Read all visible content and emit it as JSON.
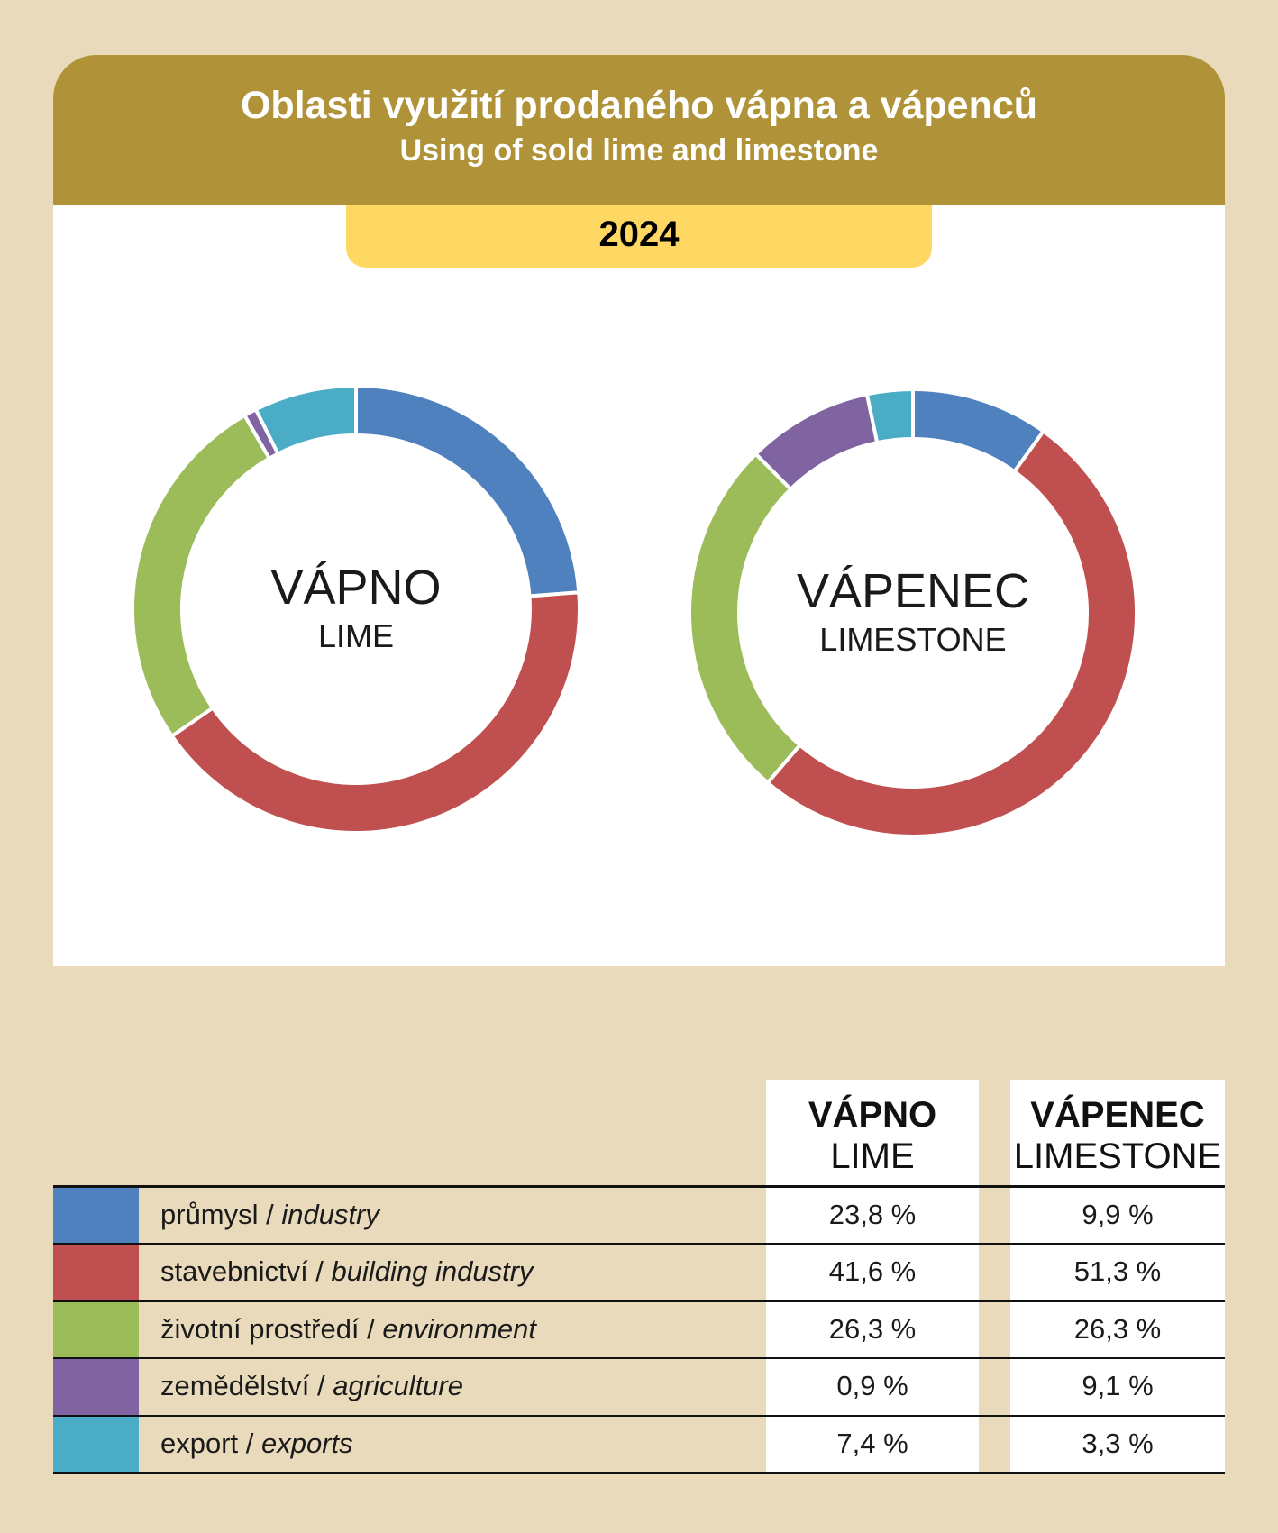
{
  "header": {
    "title": "Oblasti využití prodaného vápna a vápenců",
    "subtitle": "Using of sold lime and limestone",
    "year": "2024"
  },
  "colors": {
    "industry": "#5081bf",
    "building": "#c0504f",
    "environment": "#9bbc59",
    "agriculture": "#8064a2",
    "exports": "#4bacc6"
  },
  "chart_data": [
    {
      "type": "pie",
      "variant": "donut",
      "center_label": "VÁPNO",
      "center_sublabel": "LIME",
      "categories": [
        "průmysl / industry",
        "stavebnictví / building industry",
        "životní prostředí / environment",
        "zemědělství / agriculture",
        "export / exports"
      ],
      "values": [
        23.8,
        41.6,
        26.3,
        0.9,
        7.4
      ]
    },
    {
      "type": "pie",
      "variant": "donut",
      "center_label": "VÁPENEC",
      "center_sublabel": "LIMESTONE",
      "categories": [
        "průmysl / industry",
        "stavebnictví / building industry",
        "životní prostředí / environment",
        "zemědělství / agriculture",
        "export / exports"
      ],
      "values": [
        9.9,
        51.3,
        26.3,
        9.1,
        3.3
      ]
    }
  ],
  "table": {
    "col_lime": {
      "title": "VÁPNO",
      "subtitle": "LIME"
    },
    "col_limestone": {
      "title": "VÁPENEC",
      "subtitle": "LIMESTONE"
    },
    "rows": [
      {
        "key": "industry",
        "label_cz": "průmysl",
        "label_en": "industry",
        "lime": "23,8 %",
        "limestone": "9,9 %"
      },
      {
        "key": "building",
        "label_cz": "stavebnictví",
        "label_en": "building industry",
        "lime": "41,6 %",
        "limestone": "51,3 %"
      },
      {
        "key": "environment",
        "label_cz": "životní prostředí",
        "label_en": "environment",
        "lime": "26,3 %",
        "limestone": "26,3 %"
      },
      {
        "key": "agriculture",
        "label_cz": "zemědělství",
        "label_en": "agriculture",
        "lime": "0,9 %",
        "limestone": "9,1 %"
      },
      {
        "key": "exports",
        "label_cz": "export",
        "label_en": "exports",
        "lime": "7,4 %",
        "limestone": "3,3 %"
      }
    ]
  }
}
